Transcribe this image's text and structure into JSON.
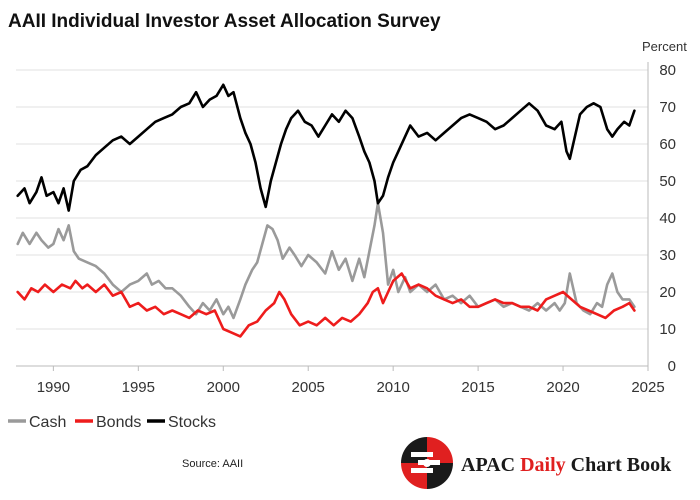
{
  "chart_data": {
    "type": "line",
    "title": "AAII Individual Investor Asset Allocation Survey",
    "ylabel": "Percent",
    "xlabel": "",
    "ylim": [
      0,
      80
    ],
    "xlim": [
      1987.8,
      2025
    ],
    "yticks": [
      0,
      10,
      20,
      30,
      40,
      50,
      60,
      70,
      80
    ],
    "xticks": [
      1990,
      1995,
      2000,
      2005,
      2010,
      2015,
      2020,
      2025
    ],
    "grid": "horizontal",
    "y_axis_side": "right",
    "legend_position": "bottom-left",
    "series": [
      {
        "name": "Cash",
        "color": "#9a9a9a",
        "points": [
          [
            1987.9,
            33
          ],
          [
            1988.2,
            36
          ],
          [
            1988.6,
            33
          ],
          [
            1989.0,
            36
          ],
          [
            1989.3,
            34
          ],
          [
            1989.7,
            32
          ],
          [
            1990.0,
            33
          ],
          [
            1990.3,
            37
          ],
          [
            1990.6,
            34
          ],
          [
            1990.9,
            38
          ],
          [
            1991.2,
            31
          ],
          [
            1991.5,
            29
          ],
          [
            1992.0,
            28
          ],
          [
            1992.5,
            27
          ],
          [
            1993.0,
            25
          ],
          [
            1993.5,
            22
          ],
          [
            1994.0,
            20
          ],
          [
            1994.5,
            22
          ],
          [
            1995.0,
            23
          ],
          [
            1995.5,
            25
          ],
          [
            1995.8,
            22
          ],
          [
            1996.2,
            23
          ],
          [
            1996.6,
            21
          ],
          [
            1997.0,
            21
          ],
          [
            1997.5,
            19
          ],
          [
            1998.0,
            16
          ],
          [
            1998.4,
            14
          ],
          [
            1998.8,
            17
          ],
          [
            1999.2,
            15
          ],
          [
            1999.6,
            18
          ],
          [
            2000.0,
            14
          ],
          [
            2000.3,
            16
          ],
          [
            2000.6,
            13
          ],
          [
            2001.0,
            18
          ],
          [
            2001.3,
            22
          ],
          [
            2001.7,
            26
          ],
          [
            2002.0,
            28
          ],
          [
            2002.3,
            33
          ],
          [
            2002.6,
            38
          ],
          [
            2002.9,
            37
          ],
          [
            2003.2,
            34
          ],
          [
            2003.5,
            29
          ],
          [
            2003.9,
            32
          ],
          [
            2004.2,
            30
          ],
          [
            2004.6,
            27
          ],
          [
            2005.0,
            30
          ],
          [
            2005.5,
            28
          ],
          [
            2006.0,
            25
          ],
          [
            2006.4,
            31
          ],
          [
            2006.8,
            26
          ],
          [
            2007.2,
            29
          ],
          [
            2007.6,
            23
          ],
          [
            2008.0,
            29
          ],
          [
            2008.3,
            24
          ],
          [
            2008.6,
            31
          ],
          [
            2008.9,
            38
          ],
          [
            2009.1,
            44
          ],
          [
            2009.4,
            36
          ],
          [
            2009.7,
            22
          ],
          [
            2010.0,
            26
          ],
          [
            2010.3,
            20
          ],
          [
            2010.7,
            24
          ],
          [
            2011.0,
            20
          ],
          [
            2011.5,
            22
          ],
          [
            2012.0,
            20
          ],
          [
            2012.5,
            22
          ],
          [
            2013.0,
            18
          ],
          [
            2013.5,
            19
          ],
          [
            2014.0,
            17
          ],
          [
            2014.5,
            19
          ],
          [
            2015.0,
            16
          ],
          [
            2015.5,
            17
          ],
          [
            2016.0,
            18
          ],
          [
            2016.5,
            16
          ],
          [
            2017.0,
            17
          ],
          [
            2017.5,
            16
          ],
          [
            2018.0,
            15
          ],
          [
            2018.5,
            17
          ],
          [
            2019.0,
            15
          ],
          [
            2019.5,
            17
          ],
          [
            2019.8,
            15
          ],
          [
            2020.1,
            17
          ],
          [
            2020.4,
            25
          ],
          [
            2020.8,
            17
          ],
          [
            2021.2,
            15
          ],
          [
            2021.6,
            14
          ],
          [
            2022.0,
            17
          ],
          [
            2022.3,
            16
          ],
          [
            2022.6,
            22
          ],
          [
            2022.9,
            25
          ],
          [
            2023.2,
            20
          ],
          [
            2023.5,
            18
          ],
          [
            2023.9,
            18
          ],
          [
            2024.2,
            16
          ]
        ]
      },
      {
        "name": "Bonds",
        "color": "#ee1c1c",
        "points": [
          [
            1987.9,
            20
          ],
          [
            1988.3,
            18
          ],
          [
            1988.7,
            21
          ],
          [
            1989.1,
            20
          ],
          [
            1989.5,
            22
          ],
          [
            1990.0,
            20
          ],
          [
            1990.5,
            22
          ],
          [
            1991.0,
            21
          ],
          [
            1991.3,
            23
          ],
          [
            1991.7,
            21
          ],
          [
            1992.0,
            22
          ],
          [
            1992.5,
            20
          ],
          [
            1993.0,
            22
          ],
          [
            1993.5,
            19
          ],
          [
            1994.0,
            20
          ],
          [
            1994.5,
            16
          ],
          [
            1995.0,
            17
          ],
          [
            1995.5,
            15
          ],
          [
            1996.0,
            16
          ],
          [
            1996.5,
            14
          ],
          [
            1997.0,
            15
          ],
          [
            1997.5,
            14
          ],
          [
            1998.0,
            13
          ],
          [
            1998.5,
            15
          ],
          [
            1999.0,
            14
          ],
          [
            1999.5,
            15
          ],
          [
            2000.0,
            10
          ],
          [
            2000.5,
            9
          ],
          [
            2001.0,
            8
          ],
          [
            2001.5,
            11
          ],
          [
            2002.0,
            12
          ],
          [
            2002.5,
            15
          ],
          [
            2003.0,
            17
          ],
          [
            2003.3,
            20
          ],
          [
            2003.6,
            18
          ],
          [
            2004.0,
            14
          ],
          [
            2004.5,
            11
          ],
          [
            2005.0,
            12
          ],
          [
            2005.5,
            11
          ],
          [
            2006.0,
            13
          ],
          [
            2006.5,
            11
          ],
          [
            2007.0,
            13
          ],
          [
            2007.5,
            12
          ],
          [
            2008.0,
            14
          ],
          [
            2008.5,
            17
          ],
          [
            2008.8,
            20
          ],
          [
            2009.1,
            21
          ],
          [
            2009.4,
            17
          ],
          [
            2009.7,
            20
          ],
          [
            2010.0,
            23
          ],
          [
            2010.5,
            25
          ],
          [
            2011.0,
            21
          ],
          [
            2011.5,
            22
          ],
          [
            2012.0,
            21
          ],
          [
            2012.5,
            19
          ],
          [
            2013.0,
            18
          ],
          [
            2013.5,
            17
          ],
          [
            2014.0,
            18
          ],
          [
            2014.5,
            16
          ],
          [
            2015.0,
            16
          ],
          [
            2015.5,
            17
          ],
          [
            2016.0,
            18
          ],
          [
            2016.5,
            17
          ],
          [
            2017.0,
            17
          ],
          [
            2017.5,
            16
          ],
          [
            2018.0,
            16
          ],
          [
            2018.5,
            15
          ],
          [
            2019.0,
            18
          ],
          [
            2019.5,
            19
          ],
          [
            2020.0,
            20
          ],
          [
            2020.5,
            18
          ],
          [
            2021.0,
            16
          ],
          [
            2021.5,
            15
          ],
          [
            2022.0,
            14
          ],
          [
            2022.5,
            13
          ],
          [
            2023.0,
            15
          ],
          [
            2023.5,
            16
          ],
          [
            2023.9,
            17
          ],
          [
            2024.2,
            15
          ]
        ]
      },
      {
        "name": "Stocks",
        "color": "#000000",
        "points": [
          [
            1987.9,
            46
          ],
          [
            1988.3,
            48
          ],
          [
            1988.6,
            44
          ],
          [
            1989.0,
            47
          ],
          [
            1989.3,
            51
          ],
          [
            1989.6,
            46
          ],
          [
            1990.0,
            47
          ],
          [
            1990.3,
            44
          ],
          [
            1990.6,
            48
          ],
          [
            1990.9,
            42
          ],
          [
            1991.2,
            50
          ],
          [
            1991.6,
            53
          ],
          [
            1992.0,
            54
          ],
          [
            1992.5,
            57
          ],
          [
            1993.0,
            59
          ],
          [
            1993.5,
            61
          ],
          [
            1994.0,
            62
          ],
          [
            1994.5,
            60
          ],
          [
            1995.0,
            62
          ],
          [
            1995.5,
            64
          ],
          [
            1996.0,
            66
          ],
          [
            1996.5,
            67
          ],
          [
            1997.0,
            68
          ],
          [
            1997.5,
            70
          ],
          [
            1998.0,
            71
          ],
          [
            1998.4,
            74
          ],
          [
            1998.8,
            70
          ],
          [
            1999.2,
            72
          ],
          [
            1999.6,
            73
          ],
          [
            2000.0,
            76
          ],
          [
            2000.3,
            73
          ],
          [
            2000.6,
            74
          ],
          [
            2001.0,
            67
          ],
          [
            2001.3,
            63
          ],
          [
            2001.6,
            60
          ],
          [
            2001.9,
            55
          ],
          [
            2002.2,
            48
          ],
          [
            2002.5,
            43
          ],
          [
            2002.8,
            50
          ],
          [
            2003.1,
            55
          ],
          [
            2003.4,
            60
          ],
          [
            2003.7,
            64
          ],
          [
            2004.0,
            67
          ],
          [
            2004.4,
            69
          ],
          [
            2004.8,
            66
          ],
          [
            2005.2,
            65
          ],
          [
            2005.6,
            62
          ],
          [
            2006.0,
            65
          ],
          [
            2006.4,
            68
          ],
          [
            2006.8,
            66
          ],
          [
            2007.2,
            69
          ],
          [
            2007.6,
            67
          ],
          [
            2008.0,
            62
          ],
          [
            2008.3,
            58
          ],
          [
            2008.6,
            55
          ],
          [
            2008.9,
            50
          ],
          [
            2009.1,
            44
          ],
          [
            2009.4,
            46
          ],
          [
            2009.7,
            51
          ],
          [
            2010.0,
            55
          ],
          [
            2010.3,
            58
          ],
          [
            2010.7,
            62
          ],
          [
            2011.0,
            65
          ],
          [
            2011.5,
            62
          ],
          [
            2012.0,
            63
          ],
          [
            2012.5,
            61
          ],
          [
            2013.0,
            63
          ],
          [
            2013.5,
            65
          ],
          [
            2014.0,
            67
          ],
          [
            2014.5,
            68
          ],
          [
            2015.0,
            67
          ],
          [
            2015.5,
            66
          ],
          [
            2016.0,
            64
          ],
          [
            2016.5,
            65
          ],
          [
            2017.0,
            67
          ],
          [
            2017.5,
            69
          ],
          [
            2018.0,
            71
          ],
          [
            2018.5,
            69
          ],
          [
            2019.0,
            65
          ],
          [
            2019.5,
            64
          ],
          [
            2019.9,
            66
          ],
          [
            2020.2,
            58
          ],
          [
            2020.4,
            56
          ],
          [
            2020.7,
            62
          ],
          [
            2021.0,
            68
          ],
          [
            2021.4,
            70
          ],
          [
            2021.8,
            71
          ],
          [
            2022.2,
            70
          ],
          [
            2022.6,
            64
          ],
          [
            2022.9,
            62
          ],
          [
            2023.2,
            64
          ],
          [
            2023.6,
            66
          ],
          [
            2023.9,
            65
          ],
          [
            2024.2,
            69
          ]
        ]
      }
    ]
  },
  "legend": {
    "items": [
      {
        "label": "Cash",
        "color": "#9a9a9a"
      },
      {
        "label": "Bonds",
        "color": "#ee1c1c"
      },
      {
        "label": "Stocks",
        "color": "#000000"
      }
    ]
  },
  "footer": {
    "source": "Source: AAII",
    "brand_part1": "APAC ",
    "brand_part2": "Daily",
    "brand_part3": " Chart Book",
    "brand_color_dark": "#1a1a1a",
    "brand_color_red": "#e02020"
  }
}
